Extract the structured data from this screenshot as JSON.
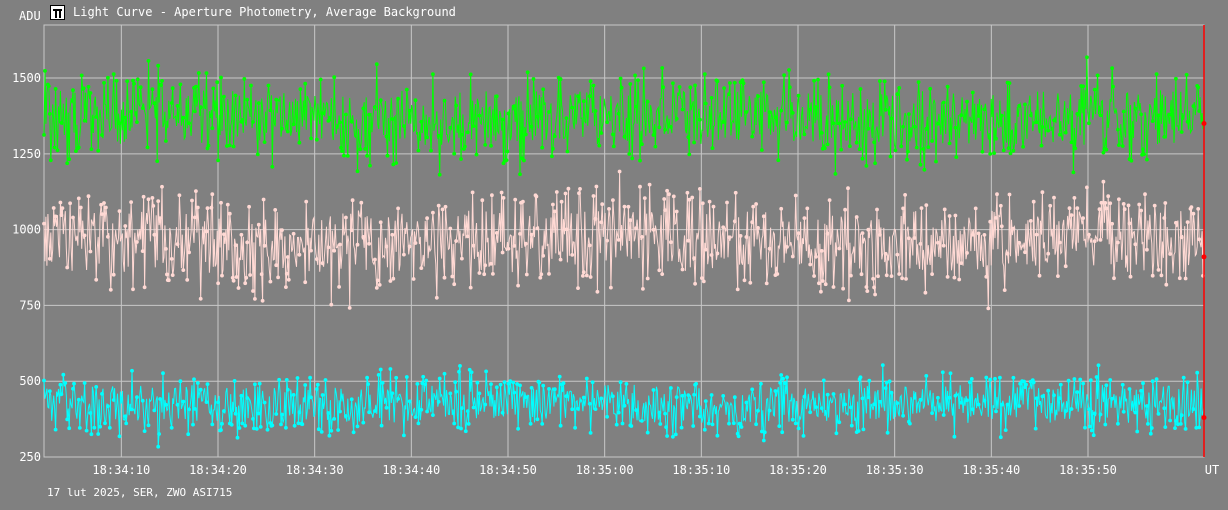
{
  "window": {
    "title": "Light Curve - Aperture Photometry, Average Background",
    "app_icon": "light-curve-app-icon"
  },
  "footer": {
    "text": "17 lut 2025, SER, ZWO ASI715"
  },
  "colors": {
    "background": "#808080",
    "grid": "#c8c8c8",
    "text": "#ffffff",
    "cursor": "#ff0000"
  },
  "chart_data": {
    "type": "line",
    "title": "Light Curve - Aperture Photometry, Average Background",
    "ylabel": "ADU",
    "xlabel": "UT",
    "ylim": [
      250,
      1675
    ],
    "yticks": [
      250,
      500,
      750,
      1000,
      1250,
      1500
    ],
    "ytick_labels": [
      "250",
      "500",
      "750",
      "1000",
      "1250",
      "1500"
    ],
    "xlim": [
      "18:34:02",
      "18:36:02"
    ],
    "xticks": [
      "18:34:10",
      "18:34:20",
      "18:34:30",
      "18:34:40",
      "18:34:50",
      "18:35:00",
      "18:35:10",
      "18:35:20",
      "18:35:30",
      "18:35:40",
      "18:35:50"
    ],
    "grid": true,
    "markers": true,
    "cursor_x": "18:36:02",
    "cursor_values": [
      1350,
      910,
      380
    ],
    "series": [
      {
        "color": "#00ff00",
        "mean": 1370,
        "spread": 65,
        "samples": 1200
      },
      {
        "color": "#ffd9d4",
        "mean": 960,
        "spread": 75,
        "samples": 1200
      },
      {
        "color": "#00ffff",
        "mean": 425,
        "spread": 45,
        "samples": 1200
      }
    ]
  }
}
